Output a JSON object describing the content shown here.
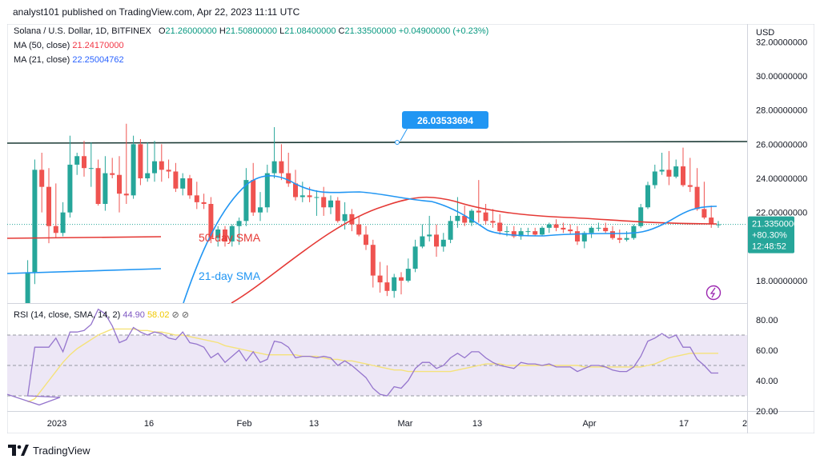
{
  "header": {
    "published": "analyst101 published on TradingView.com, Apr 22, 2023 11:11 UTC"
  },
  "legend": {
    "symbol": "Solana / U.S. Dollar, 1D, BITFINEX",
    "open_label": "O",
    "open": "21.26000000",
    "high_label": "H",
    "high": "21.50800000",
    "low_label": "L",
    "low": "21.08400000",
    "close_label": "C",
    "close": "21.33500000",
    "change": "+0.04900000 (+0.23%)",
    "ma50_label": "MA (50, close)",
    "ma50_value": "21.24170000",
    "ma21_label": "MA (21, close)",
    "ma21_value": "22.25004762",
    "rsi_label": "RSI (14, close, SMA, 14, 2)",
    "rsi_value": "44.90",
    "rsi_sma_value": "58.02"
  },
  "price_axis": {
    "currency": "USD",
    "ticks": [
      "32.00000000",
      "30.00000000",
      "28.00000000",
      "26.00000000",
      "24.00000000",
      "22.00000000",
      "18.00000000"
    ],
    "current_price_tag": {
      "price": "21.33500000",
      "change_pct": "+80.30%",
      "countdown": "12:48:52"
    }
  },
  "rsi_axis": {
    "ticks": [
      "80.00",
      "60.00",
      "40.00",
      "20.00"
    ]
  },
  "time_axis": {
    "ticks": [
      "2023",
      "16",
      "Feb",
      "13",
      "Mar",
      "13",
      "Apr",
      "17",
      "2"
    ]
  },
  "annotations": {
    "resistance_label": "26.03533694",
    "sma50_label": "50-day SMA",
    "sma21_label": "21-day SMA"
  },
  "footer": {
    "brand": "TradingView"
  },
  "colors": {
    "up": "#26a69a",
    "down": "#ef5350",
    "ma50": "#e53935",
    "ma21": "#2196f3",
    "resistance": "#1b3a35",
    "rsi": "#9575cd",
    "rsi_sma": "#f5e27a",
    "rsi_band": "#ede7f6",
    "accent": "#2196f3"
  },
  "chart_data": [
    {
      "type": "candlestick",
      "title": "Solana / U.S. Dollar, 1D, BITFINEX",
      "x": [
        "Jan 14",
        "Jan 15",
        "Jan 16",
        "Jan 17",
        "Jan 18",
        "Jan 19",
        "Jan 20",
        "Jan 21",
        "Jan 22",
        "Jan 23",
        "Jan 24",
        "Jan 25",
        "Jan 26",
        "Jan 27",
        "Jan 28",
        "Jan 29",
        "Jan 30",
        "Jan 31",
        "Feb 1",
        "Feb 2",
        "Feb 3",
        "Feb 4",
        "Feb 5",
        "Feb 6",
        "Feb 7",
        "Feb 8",
        "Feb 9",
        "Feb 10",
        "Feb 11",
        "Feb 12",
        "Feb 13",
        "Feb 14",
        "Feb 15",
        "Feb 16",
        "Feb 17",
        "Feb 18",
        "Feb 19",
        "Feb 20",
        "Feb 21",
        "Feb 22",
        "Feb 23",
        "Feb 24",
        "Feb 25",
        "Feb 26",
        "Feb 27",
        "Feb 28",
        "Mar 1",
        "Mar 2",
        "Mar 3",
        "Mar 4",
        "Mar 5",
        "Mar 6",
        "Mar 7",
        "Mar 8",
        "Mar 9",
        "Mar 10",
        "Mar 11",
        "Mar 12",
        "Mar 13",
        "Mar 14",
        "Mar 15",
        "Mar 16",
        "Mar 17",
        "Mar 18",
        "Mar 19",
        "Mar 20",
        "Mar 21",
        "Mar 22",
        "Mar 23",
        "Mar 24",
        "Mar 25",
        "Mar 26",
        "Mar 27",
        "Mar 28",
        "Mar 29",
        "Mar 30",
        "Mar 31",
        "Apr 1",
        "Apr 2",
        "Apr 3",
        "Apr 4",
        "Apr 5",
        "Apr 6",
        "Apr 7",
        "Apr 8",
        "Apr 9",
        "Apr 10",
        "Apr 11",
        "Apr 12",
        "Apr 13",
        "Apr 14",
        "Apr 15",
        "Apr 16",
        "Apr 17",
        "Apr 18",
        "Apr 19",
        "Apr 20",
        "Apr 21",
        "Apr 22"
      ],
      "open": [
        13.4,
        18.5,
        24.5,
        23.5,
        21.2,
        20.8,
        22.0,
        24.8,
        25.3,
        24.6,
        24.6,
        22.5,
        24.3,
        24.2,
        23.1,
        23.0,
        26.0,
        24.0,
        24.3,
        25.0,
        24.5,
        24.4,
        23.4,
        24.0,
        23.0,
        22.6,
        22.5,
        20.5,
        21.0,
        20.3,
        21.2,
        21.5,
        23.9,
        22.0,
        22.3,
        24.3,
        25.0,
        24.3,
        23.7,
        22.9,
        23.0,
        22.9,
        22.9,
        22.3,
        22.7,
        21.5,
        21.9,
        21.3,
        20.7,
        20.1,
        18.3,
        17.9,
        17.4,
        18.2,
        18.0,
        18.7,
        20.0,
        20.6,
        20.7,
        20.0,
        20.4,
        21.5,
        21.8,
        21.4,
        22.1,
        22.0,
        21.5,
        21.4,
        20.9,
        20.9,
        20.6,
        20.9,
        20.9,
        20.7,
        21.1,
        21.3,
        21.1,
        21.0,
        20.9,
        20.3,
        20.8,
        21.1,
        21.1,
        20.9,
        20.5,
        20.4,
        20.5,
        21.2,
        22.3,
        23.6,
        24.4,
        24.5,
        24.1,
        24.7,
        23.6,
        23.5,
        22.2,
        21.7,
        21.3
      ],
      "high": [
        19.2,
        25.1,
        25.5,
        24.6,
        23.7,
        22.6,
        26.5,
        25.5,
        26.2,
        26.1,
        25.1,
        25.3,
        25.2,
        25.3,
        27.2,
        26.5,
        26.3,
        26.1,
        26.2,
        26.0,
        25.1,
        24.9,
        24.3,
        24.2,
        23.8,
        23.1,
        22.9,
        21.2,
        21.2,
        21.3,
        21.7,
        24.6,
        24.9,
        23.2,
        24.8,
        27.0,
        26.0,
        25.5,
        24.5,
        23.8,
        23.5,
        23.3,
        23.5,
        23.0,
        22.9,
        22.6,
        22.2,
        21.8,
        21.2,
        20.4,
        19.1,
        18.9,
        18.4,
        18.5,
        19.3,
        20.4,
        21.3,
        21.8,
        21.3,
        20.8,
        21.8,
        22.9,
        22.4,
        22.2,
        23.9,
        22.5,
        22.2,
        21.9,
        21.2,
        21.2,
        21.1,
        21.1,
        21.1,
        21.2,
        21.4,
        21.6,
        21.4,
        21.3,
        21.2,
        20.9,
        21.2,
        21.4,
        21.4,
        21.2,
        21.0,
        20.9,
        21.3,
        22.5,
        23.8,
        24.8,
        25.5,
        25.6,
        25.1,
        25.8,
        25.2,
        24.6,
        23.8,
        22.4,
        21.5
      ],
      "low": [
        12.8,
        17.8,
        22.0,
        20.2,
        20.5,
        20.6,
        21.7,
        24.2,
        24.1,
        23.5,
        22.4,
        22.1,
        24.0,
        22.0,
        22.5,
        22.8,
        23.6,
        23.8,
        23.8,
        23.8,
        24.0,
        23.2,
        23.0,
        22.8,
        22.2,
        22.2,
        20.2,
        20.0,
        20.0,
        20.0,
        20.1,
        21.2,
        21.8,
        21.5,
        22.0,
        24.0,
        23.9,
        23.5,
        22.7,
        22.6,
        22.6,
        21.8,
        21.8,
        21.9,
        21.4,
        21.0,
        20.9,
        20.6,
        19.8,
        17.6,
        17.3,
        17.1,
        17.0,
        17.2,
        17.9,
        18.5,
        19.9,
        20.3,
        19.4,
        19.7,
        20.2,
        21.1,
        21.2,
        21.2,
        21.4,
        21.3,
        21.1,
        20.7,
        20.6,
        20.5,
        20.4,
        20.6,
        20.6,
        20.6,
        20.8,
        20.9,
        20.8,
        20.7,
        20.1,
        19.9,
        20.5,
        20.9,
        20.8,
        20.4,
        20.2,
        20.3,
        20.4,
        21.1,
        22.2,
        23.4,
        24.2,
        23.6,
        24.0,
        23.5,
        23.2,
        22.1,
        21.6,
        21.1,
        21.1
      ],
      "close": [
        18.5,
        24.5,
        23.5,
        21.2,
        20.8,
        22.0,
        24.8,
        25.3,
        24.6,
        24.6,
        22.5,
        24.3,
        24.2,
        23.1,
        23.0,
        26.0,
        24.0,
        24.3,
        25.0,
        24.5,
        24.4,
        23.4,
        24.0,
        23.0,
        22.6,
        22.5,
        20.5,
        21.0,
        20.3,
        21.2,
        21.5,
        23.9,
        22.0,
        22.3,
        24.3,
        25.0,
        24.3,
        23.7,
        22.9,
        23.0,
        22.9,
        22.9,
        22.3,
        22.7,
        21.5,
        21.9,
        21.3,
        20.7,
        20.1,
        18.3,
        17.9,
        17.4,
        18.2,
        18.0,
        18.7,
        20.0,
        20.6,
        20.7,
        20.0,
        20.4,
        21.5,
        21.8,
        21.4,
        22.1,
        22.0,
        21.5,
        21.4,
        20.9,
        20.9,
        20.6,
        20.9,
        20.9,
        20.7,
        21.1,
        21.3,
        21.1,
        21.0,
        20.9,
        20.3,
        20.8,
        21.1,
        21.1,
        20.9,
        20.5,
        20.4,
        20.5,
        21.2,
        22.3,
        23.6,
        24.4,
        24.5,
        24.1,
        24.7,
        23.6,
        23.5,
        22.2,
        21.7,
        21.3,
        21.3
      ],
      "ma50": [
        null,
        null,
        null,
        null,
        null,
        null,
        null,
        null,
        null,
        null,
        null,
        null,
        null,
        null,
        null,
        null,
        null,
        null,
        null,
        null,
        null,
        null,
        null,
        null,
        null,
        null,
        null,
        null,
        null,
        null,
        null,
        null,
        null,
        null,
        null,
        null,
        null,
        null,
        null,
        null,
        null,
        null,
        null,
        null,
        null,
        21.0,
        21.4,
        21.8,
        22.1,
        22.4,
        22.6,
        22.7,
        22.8,
        22.85,
        22.85,
        22.8,
        22.7,
        22.6,
        22.5,
        22.4,
        22.3,
        22.2,
        22.1,
        22.0,
        21.95,
        21.9,
        21.8,
        21.75,
        21.7,
        21.65,
        21.6,
        21.55,
        21.5,
        21.5,
        21.45,
        21.4,
        21.4,
        21.4,
        21.38,
        21.35,
        21.32,
        21.3,
        21.28,
        21.25,
        21.22,
        21.2,
        21.2,
        21.2,
        21.22,
        21.25,
        21.28,
        21.3,
        21.3,
        21.3,
        21.28,
        21.26,
        21.25,
        21.24,
        21.24
      ],
      "ma21": [
        null,
        null,
        null,
        null,
        null,
        null,
        null,
        null,
        null,
        null,
        null,
        null,
        null,
        null,
        null,
        null,
        null,
        null,
        null,
        null,
        null,
        null,
        null,
        null,
        null,
        null,
        null,
        null,
        null,
        null,
        null,
        null,
        null,
        null,
        null,
        null,
        null,
        null,
        null,
        null,
        null,
        null,
        null,
        null,
        null,
        null,
        null,
        null,
        null,
        null,
        null,
        null,
        null,
        null,
        null,
        null,
        null,
        null,
        null,
        null,
        null,
        null,
        null,
        null,
        null,
        null,
        null,
        null,
        null,
        null,
        null,
        null,
        null,
        null,
        null,
        null,
        null,
        null,
        null,
        null,
        null,
        null,
        null,
        null,
        null,
        null,
        null,
        null,
        null,
        null,
        null,
        null,
        null,
        null,
        null,
        null,
        null,
        null,
        null
      ],
      "ylabel": "USD",
      "ylim": [
        16.6,
        32.6
      ],
      "resistance": 26.03533694
    },
    {
      "type": "line",
      "title": "RSI (14, close, SMA, 14, 2)",
      "series": [
        {
          "name": "RSI",
          "values": [
            30,
            62,
            62,
            62,
            68,
            59,
            72,
            72,
            73,
            77,
            87,
            84,
            76,
            65,
            67,
            75,
            72,
            70,
            72,
            71,
            68,
            67,
            72,
            65,
            64,
            62,
            55,
            58,
            52,
            56,
            60,
            53,
            59,
            52,
            54,
            66,
            65,
            62,
            55,
            56,
            56,
            55,
            56,
            55,
            50,
            53,
            50,
            46,
            42,
            35,
            31,
            30,
            36,
            35,
            40,
            48,
            52,
            52,
            48,
            50,
            55,
            58,
            55,
            59,
            59,
            55,
            52,
            50,
            49,
            48,
            52,
            51,
            51,
            50,
            51,
            49,
            49,
            49,
            46,
            48,
            50,
            50,
            49,
            47,
            46,
            46,
            49,
            56,
            66,
            68,
            71,
            68,
            70,
            62,
            62,
            54,
            50,
            45,
            45
          ]
        },
        {
          "name": "RSI-based MA",
          "values": [
            26,
            28,
            34,
            40,
            46,
            52,
            57,
            61,
            64,
            67,
            70,
            72,
            74,
            74,
            74,
            74,
            73,
            73,
            72,
            72,
            71,
            70,
            70,
            69,
            68,
            67,
            66,
            65,
            63,
            62,
            61,
            60,
            59,
            58,
            57,
            57,
            57,
            57,
            57,
            56,
            56,
            56,
            55,
            54,
            54,
            53,
            53,
            52,
            51,
            50,
            49,
            48,
            47,
            47,
            46,
            46,
            46,
            46,
            46,
            46,
            46,
            47,
            48,
            49,
            50,
            51,
            51,
            51,
            50,
            50,
            50,
            50,
            50,
            50,
            50,
            50,
            50,
            50,
            50,
            49,
            49,
            49,
            49,
            49,
            49,
            49,
            49,
            49,
            50,
            51,
            53,
            55,
            56,
            57,
            58,
            58,
            58,
            58,
            58
          ]
        }
      ],
      "ylim": [
        20,
        85
      ],
      "bands": [
        30,
        50,
        70
      ]
    }
  ]
}
